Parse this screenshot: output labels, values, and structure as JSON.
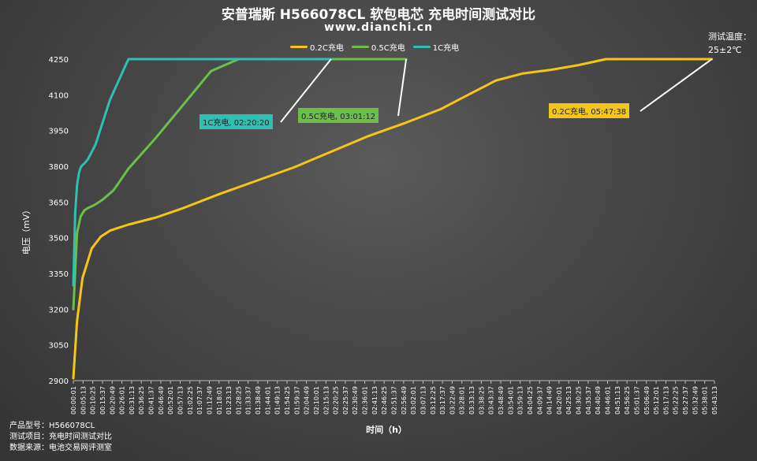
{
  "chart_data": {
    "type": "line",
    "title": "安普瑞斯 H566078CL 软包电芯 充电时间测试对比",
    "subtitle": "www.dianchi.cn",
    "xlabel": "时间（h）",
    "ylabel": "电压（mV）",
    "ylim": [
      2900,
      4250
    ],
    "yticks": [
      2900,
      3050,
      3200,
      3350,
      3500,
      3650,
      3800,
      3950,
      4100,
      4250
    ],
    "xticks": [
      "00:00:01",
      "00:05:13",
      "00:10:25",
      "00:15:37",
      "00:20:49",
      "00:26:01",
      "00:31:13",
      "00:36:25",
      "00:41:37",
      "00:46:49",
      "00:52:01",
      "00:57:13",
      "01:02:25",
      "01:07:37",
      "01:12:49",
      "01:18:01",
      "01:23:13",
      "01:28:25",
      "01:33:37",
      "01:38:49",
      "01:44:01",
      "01:49:13",
      "01:54:25",
      "01:59:37",
      "02:04:49",
      "02:10:01",
      "02:15:13",
      "02:20:25",
      "02:25:37",
      "02:30:49",
      "02:36:01",
      "02:41:13",
      "02:46:25",
      "02:51:37",
      "02:56:49",
      "03:02:01",
      "03:07:13",
      "03:12:25",
      "03:17:37",
      "03:22:49",
      "03:28:01",
      "03:33:13",
      "03:38:25",
      "03:43:37",
      "03:48:49",
      "03:54:01",
      "03:59:13",
      "04:04:25",
      "04:09:37",
      "04:14:49",
      "04:20:01",
      "04:25:13",
      "04:30:25",
      "04:35:37",
      "04:40:49",
      "04:46:01",
      "04:51:13",
      "04:56:25",
      "05:01:37",
      "05:06:49",
      "05:12:01",
      "05:17:13",
      "05:22:25",
      "05:27:37",
      "05:32:49",
      "05:38:01",
      "05:43:13"
    ],
    "x_max_minutes": 349,
    "grid": false,
    "legend_position": "top",
    "series": [
      {
        "name": "0.2C充电",
        "color": "#f5c518",
        "x": [
          0,
          2,
          5,
          10,
          15,
          20,
          30,
          45,
          60,
          80,
          100,
          120,
          140,
          160,
          180,
          200,
          215,
          230,
          245,
          260,
          275,
          290,
          296,
          302,
          310,
          320,
          330,
          340,
          347.6
        ],
        "y": [
          2910,
          3150,
          3330,
          3455,
          3505,
          3530,
          3555,
          3585,
          3625,
          3685,
          3740,
          3795,
          3860,
          3925,
          3980,
          4040,
          4100,
          4160,
          4190,
          4205,
          4225,
          4250,
          4250,
          4250,
          4250,
          4250,
          4250,
          4250,
          4250
        ]
      },
      {
        "name": "0.5C充电",
        "color": "#6cc04a",
        "x": [
          0,
          2,
          4,
          6,
          8,
          10,
          12,
          16,
          22,
          30,
          45,
          60,
          75,
          90,
          105,
          120,
          135,
          150,
          165,
          175,
          181.2
        ],
        "y": [
          3200,
          3520,
          3590,
          3615,
          3625,
          3632,
          3640,
          3660,
          3700,
          3790,
          3920,
          4060,
          4200,
          4250,
          4250,
          4250,
          4250,
          4250,
          4250,
          4250,
          4250
        ]
      },
      {
        "name": "1C充电",
        "color": "#2fc0b4",
        "x": [
          0,
          1,
          2,
          3,
          4,
          5,
          6,
          8,
          12,
          20,
          30,
          33,
          40,
          60,
          80,
          100,
          120,
          135,
          140.3
        ],
        "y": [
          3300,
          3600,
          3720,
          3770,
          3795,
          3805,
          3812,
          3830,
          3890,
          4080,
          4250,
          4250,
          4250,
          4250,
          4250,
          4250,
          4250,
          4250,
          4250
        ]
      }
    ],
    "annotations": [
      {
        "series": "1C充电",
        "label": "1C充电, 02:20:20",
        "color": "#2fc0b4"
      },
      {
        "series": "0.5C充电",
        "label": "0.5C充电, 03:01:12",
        "color": "#6cc04a"
      },
      {
        "series": "0.2C充电",
        "label": "0.2C充电, 05:47:38",
        "color": "#f5c518"
      }
    ]
  },
  "temperature_note": {
    "label": "测试温度：",
    "value": "25±2℃"
  },
  "footer": [
    {
      "key": "产品型号：",
      "value": "H566078CL"
    },
    {
      "key": "测试项目：",
      "value": "充电时间测试对比"
    },
    {
      "key": "数据来源：",
      "value": "电池交易网评测室"
    }
  ]
}
